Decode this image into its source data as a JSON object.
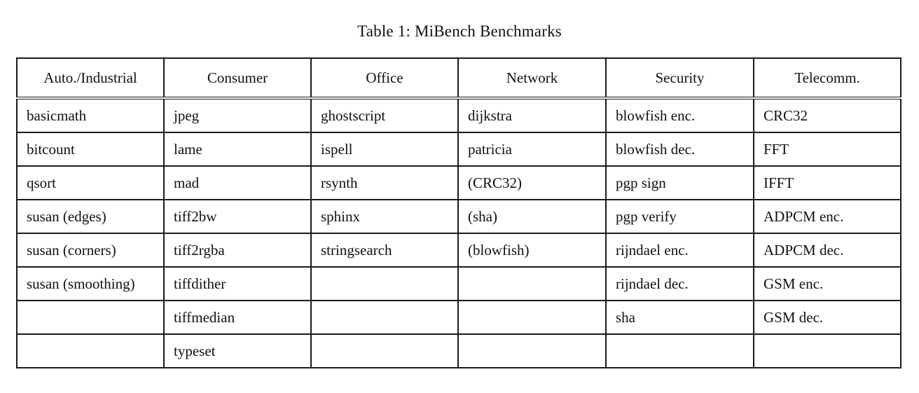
{
  "caption": "Table 1: MiBench Benchmarks",
  "table": {
    "headers": [
      "Auto./Industrial",
      "Consumer",
      "Office",
      "Network",
      "Security",
      "Telecomm."
    ],
    "rows": [
      [
        "basicmath",
        "jpeg",
        "ghostscript",
        "dijkstra",
        "blowfish enc.",
        "CRC32"
      ],
      [
        "bitcount",
        "lame",
        "ispell",
        "patricia",
        "blowfish dec.",
        "FFT"
      ],
      [
        "qsort",
        "mad",
        "rsynth",
        "(CRC32)",
        "pgp sign",
        "IFFT"
      ],
      [
        "susan (edges)",
        "tiff2bw",
        "sphinx",
        "(sha)",
        "pgp verify",
        "ADPCM enc."
      ],
      [
        "susan (corners)",
        "tiff2rgba",
        "stringsearch",
        "(blowfish)",
        "rijndael enc.",
        "ADPCM dec."
      ],
      [
        "susan (smoothing)",
        "tiffdither",
        "",
        "",
        "rijndael dec.",
        "GSM enc."
      ],
      [
        "",
        "tiffmedian",
        "",
        "",
        "sha",
        "GSM dec."
      ],
      [
        "",
        "typeset",
        "",
        "",
        "",
        ""
      ]
    ]
  }
}
